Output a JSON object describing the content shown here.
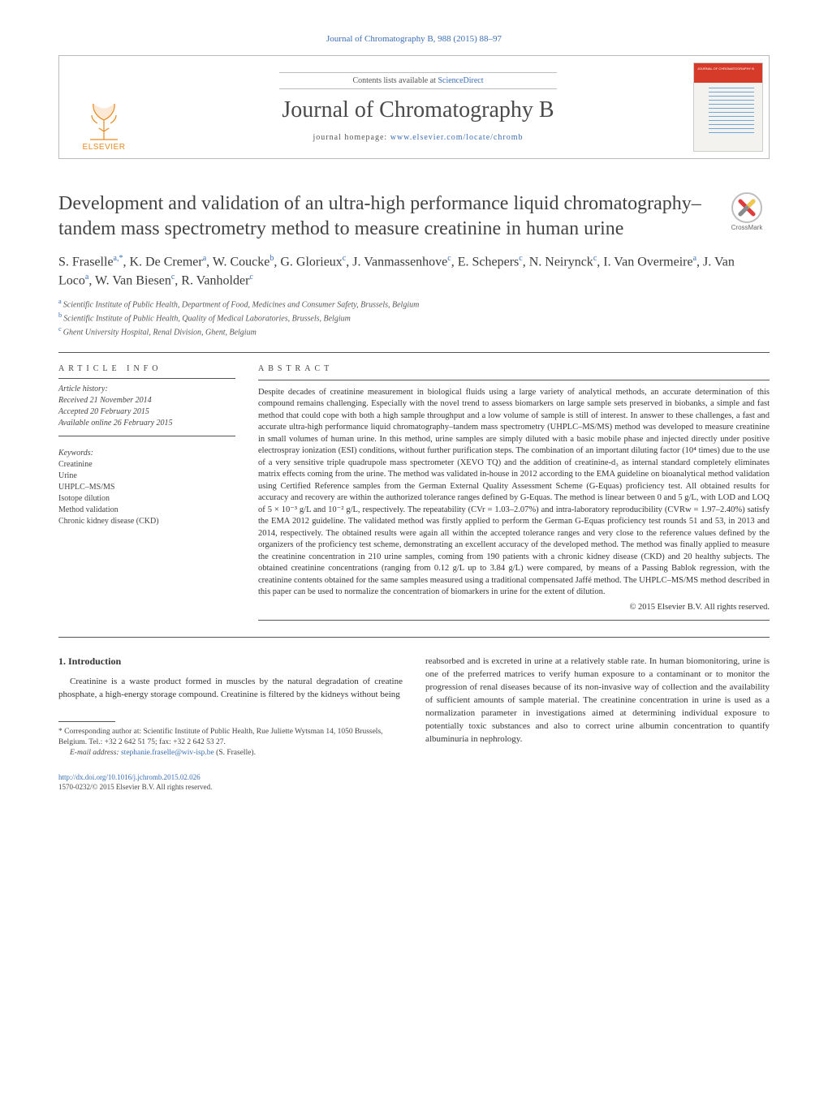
{
  "header_ref": "Journal of Chromatography B, 988 (2015) 88–97",
  "masthead": {
    "publisher": "ELSEVIER",
    "contents_prefix": "Contents lists available at ",
    "contents_link": "ScienceDirect",
    "journal_name": "Journal of Chromatography B",
    "homepage_prefix": "journal homepage: ",
    "homepage_url": "www.elsevier.com/locate/chromb",
    "cover_title": "JOURNAL OF CHROMATOGRAPHY B",
    "logo_color": "#ea8a1f",
    "cover_band_color": "#d63b2a",
    "link_color": "#3b6fb6",
    "border_color": "#bbbbbb"
  },
  "crossmark_label": "CrossMark",
  "title": "Development and validation of an ultra-high performance liquid chromatography–tandem mass spectrometry method to measure creatinine in human urine",
  "authors_html": {
    "parts": [
      {
        "t": "S. Fraselle",
        "sup": "a,*"
      },
      {
        "t": ", K. De Cremer",
        "sup": "a"
      },
      {
        "t": ", W. Coucke",
        "sup": "b"
      },
      {
        "t": ", G. Glorieux",
        "sup": "c"
      },
      {
        "t": ", J. Vanmassenhove",
        "sup": "c"
      },
      {
        "t": ", E. Schepers",
        "sup": "c"
      },
      {
        "t": ", N. Neirynck",
        "sup": "c"
      },
      {
        "t": ", I. Van Overmeire",
        "sup": "a"
      },
      {
        "t": ", J. Van Loco",
        "sup": "a"
      },
      {
        "t": ", W. Van Biesen",
        "sup": "c"
      },
      {
        "t": ", R. Vanholder",
        "sup": "c"
      }
    ]
  },
  "affiliations": [
    {
      "sup": "a",
      "text": "Scientific Institute of Public Health, Department of Food, Medicines and Consumer Safety, Brussels, Belgium"
    },
    {
      "sup": "b",
      "text": "Scientific Institute of Public Health, Quality of Medical Laboratories, Brussels, Belgium"
    },
    {
      "sup": "c",
      "text": "Ghent University Hospital, Renal Division, Ghent, Belgium"
    }
  ],
  "article_info": {
    "heading": "ARTICLE INFO",
    "history_label": "Article history:",
    "history": [
      "Received 21 November 2014",
      "Accepted 20 February 2015",
      "Available online 26 February 2015"
    ],
    "keywords_label": "Keywords:",
    "keywords": [
      "Creatinine",
      "Urine",
      "UHPLC–MS/MS",
      "Isotope dilution",
      "Method validation",
      "Chronic kidney disease (CKD)"
    ]
  },
  "abstract": {
    "heading": "ABSTRACT",
    "text": "Despite decades of creatinine measurement in biological fluids using a large variety of analytical methods, an accurate determination of this compound remains challenging. Especially with the novel trend to assess biomarkers on large sample sets preserved in biobanks, a simple and fast method that could cope with both a high sample throughput and a low volume of sample is still of interest. In answer to these challenges, a fast and accurate ultra-high performance liquid chromatography–tandem mass spectrometry (UHPLC–MS/MS) method was developed to measure creatinine in small volumes of human urine. In this method, urine samples are simply diluted with a basic mobile phase and injected directly under positive electrospray ionization (ESI) conditions, without further purification steps. The combination of an important diluting factor (10⁴ times) due to the use of a very sensitive triple quadrupole mass spectrometer (XEVO TQ) and the addition of creatinine-d₃ as internal standard completely eliminates matrix effects coming from the urine. The method was validated in-house in 2012 according to the EMA guideline on bioanalytical method validation using Certified Reference samples from the German External Quality Assessment Scheme (G-Equas) proficiency test. All obtained results for accuracy and recovery are within the authorized tolerance ranges defined by G-Equas. The method is linear between 0 and 5 g/L, with LOD and LOQ of 5 × 10⁻³ g/L and 10⁻² g/L, respectively. The repeatability (CVr = 1.03–2.07%) and intra-laboratory reproducibility (CVRw = 1.97–2.40%) satisfy the EMA 2012 guideline. The validated method was firstly applied to perform the German G-Equas proficiency test rounds 51 and 53, in 2013 and 2014, respectively. The obtained results were again all within the accepted tolerance ranges and very close to the reference values defined by the organizers of the proficiency test scheme, demonstrating an excellent accuracy of the developed method. The method was finally applied to measure the creatinine concentration in 210 urine samples, coming from 190 patients with a chronic kidney disease (CKD) and 20 healthy subjects. The obtained creatinine concentrations (ranging from 0.12 g/L up to 3.84 g/L) were compared, by means of a Passing Bablok regression, with the creatinine contents obtained for the same samples measured using a traditional compensated Jaffé method. The UHPLC–MS/MS method described in this paper can be used to normalize the concentration of biomarkers in urine for the extent of dilution.",
    "copyright": "© 2015 Elsevier B.V. All rights reserved."
  },
  "intro": {
    "heading": "1.  Introduction",
    "col1": "Creatinine is a waste product formed in muscles by the natural degradation of creatine phosphate, a high-energy storage compound. Creatinine is filtered by the kidneys without being",
    "col2": "reabsorbed and is excreted in urine at a relatively stable rate. In human biomonitoring, urine is one of the preferred matrices to verify human exposure to a contaminant or to monitor the progression of renal diseases because of its non-invasive way of collection and the availability of sufficient amounts of sample material. The creatinine concentration in urine is used as a normalization parameter in investigations aimed at determining individual exposure to potentially toxic substances and also to correct urine albumin concentration to quantify albuminuria in nephrology."
  },
  "footnote": {
    "corr_label": "* Corresponding author at: ",
    "corr_text": "Scientific Institute of Public Health, Rue Juliette Wytsman 14, 1050 Brussels, Belgium. Tel.: +32 2 642 51 75; fax: +32 2 642 53 27.",
    "email_label": "E-mail address: ",
    "email": "stephanie.fraselle@wiv-isp.be",
    "email_suffix": " (S. Fraselle)."
  },
  "doi": {
    "url": "http://dx.doi.org/10.1016/j.jchromb.2015.02.026",
    "rights": "1570-0232/© 2015 Elsevier B.V. All rights reserved."
  },
  "style": {
    "page_bg": "#ffffff",
    "text_color": "#333333",
    "link_color": "#3b6fb6",
    "logo_orange": "#ea8a1f",
    "rule_color": "#555555",
    "title_fontsize": 24,
    "author_fontsize": 16,
    "abstract_fontsize": 10.5,
    "body_fontsize": 11,
    "heading_letterspacing": 5
  }
}
